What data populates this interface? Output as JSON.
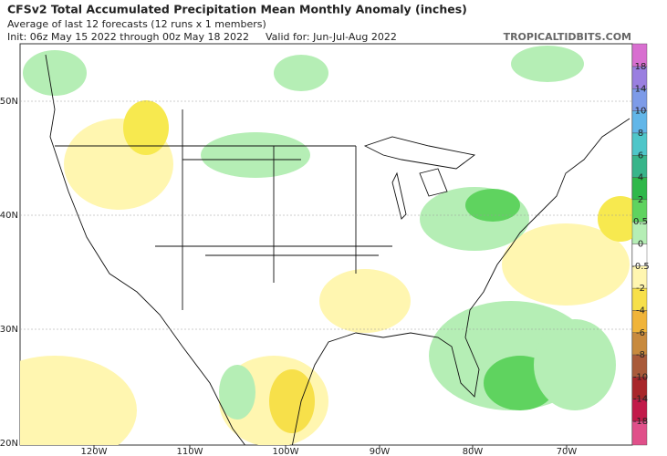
{
  "header": {
    "title": "CFSv2 Total Accumulated Precipitation Mean Monthly Anomaly (inches)",
    "subtitle": "Average of last 12 forecasts (12 runs x 1 members)",
    "init": "Init: 06z May 15 2022 through 00z May 18 2022",
    "valid": "Valid for: Jun-Jul-Aug 2022",
    "site": "TROPICALTIDBITS.COM"
  },
  "map": {
    "lon_labels": [
      "120W",
      "110W",
      "100W",
      "90W",
      "80W",
      "70W"
    ],
    "lat_labels": [
      "50N",
      "40N",
      "30N",
      "20N"
    ]
  },
  "colorbar": {
    "labels": [
      18,
      14,
      10,
      8,
      6,
      4,
      2,
      0.5,
      0,
      -0.5,
      -2,
      -4,
      -6,
      -8,
      -10,
      -14,
      -18
    ],
    "colors": [
      "#d86fd0",
      "#9a7fe0",
      "#7d9be8",
      "#62b6e8",
      "#4fc6c9",
      "#38b58a",
      "#2fb84a",
      "#5fd35f",
      "#b5eeb5",
      "#ffffff",
      "#fff6b0",
      "#f7e04a",
      "#f0b43a",
      "#c88a3e",
      "#a95a3a",
      "#a8262a",
      "#c21a4a",
      "#e0508a"
    ]
  }
}
